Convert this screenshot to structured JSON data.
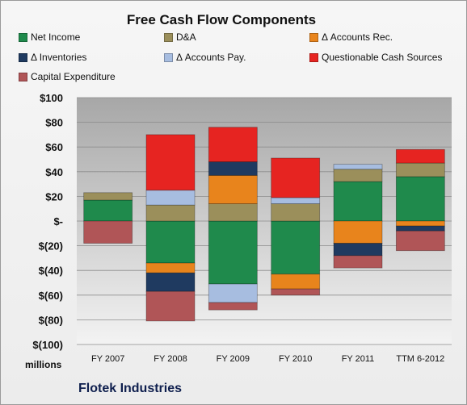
{
  "chart_data": {
    "type": "bar",
    "stacked": true,
    "title": "Free Cash Flow Components",
    "categories": [
      "FY 2007",
      "FY 2008",
      "FY 2009",
      "FY 2010",
      "FY 2011",
      "TTM 6-2012"
    ],
    "ylim": [
      -100,
      100
    ],
    "yticks": [
      100,
      80,
      60,
      40,
      20,
      0,
      -20,
      -40,
      -60,
      -80,
      -100
    ],
    "ytick_labels": [
      "$100",
      "$80",
      "$60",
      "$40",
      "$20",
      "$-",
      "$(20)",
      "$(40)",
      "$(60)",
      "$(80)",
      "$(100)"
    ],
    "y_unit": "millions",
    "grid": true,
    "legend_position": "top",
    "series": [
      {
        "name": "Net Income",
        "color": "#1f8a4c",
        "values": [
          17,
          -34,
          -51,
          -43,
          32,
          36
        ]
      },
      {
        "name": "D&A",
        "color": "#9b8f5b",
        "values": [
          6,
          13,
          14,
          14,
          10,
          11
        ]
      },
      {
        "name": "Δ Accounts Rec.",
        "color": "#e8841c",
        "values": [
          0,
          -8,
          23,
          -12,
          -18,
          -4
        ]
      },
      {
        "name": "Δ Inventories",
        "color": "#1f3a60",
        "values": [
          0,
          -15,
          11,
          0,
          -10,
          -4
        ]
      },
      {
        "name": "Δ Accounts Pay.",
        "color": "#a7bde0",
        "values": [
          0,
          12,
          -15,
          5,
          4,
          0
        ]
      },
      {
        "name": "Questionable Cash Sources",
        "color": "#e62421",
        "values": [
          0,
          45,
          28,
          32,
          0,
          11
        ]
      },
      {
        "name": "Capital Expenditure",
        "color": "#b05557",
        "values": [
          -18,
          -24,
          -6,
          -5,
          -10,
          -16
        ]
      }
    ]
  },
  "company_name": "Flotek Industries"
}
